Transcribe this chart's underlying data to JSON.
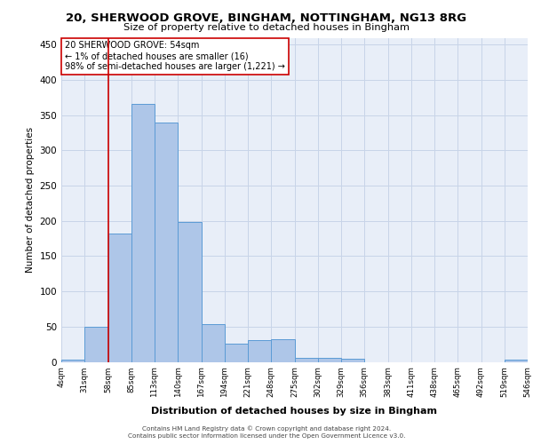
{
  "title_line1": "20, SHERWOOD GROVE, BINGHAM, NOTTINGHAM, NG13 8RG",
  "title_line2": "Size of property relative to detached houses in Bingham",
  "xlabel": "Distribution of detached houses by size in Bingham",
  "ylabel": "Number of detached properties",
  "bar_values": [
    3,
    50,
    182,
    366,
    340,
    199,
    54,
    26,
    31,
    32,
    6,
    6,
    4,
    0,
    0,
    0,
    0,
    0,
    0,
    3
  ],
  "tick_labels": [
    "4sqm",
    "31sqm",
    "58sqm",
    "85sqm",
    "113sqm",
    "140sqm",
    "167sqm",
    "194sqm",
    "221sqm",
    "248sqm",
    "275sqm",
    "302sqm",
    "329sqm",
    "356sqm",
    "383sqm",
    "411sqm",
    "438sqm",
    "465sqm",
    "492sqm",
    "519sqm",
    "546sqm"
  ],
  "bar_color": "#aec6e8",
  "bar_edge_color": "#5b9bd5",
  "grid_color": "#c8d4e8",
  "background_color": "#e8eef8",
  "annotation_text": "20 SHERWOOD GROVE: 54sqm\n← 1% of detached houses are smaller (16)\n98% of semi-detached houses are larger (1,221) →",
  "annotation_box_color": "#ffffff",
  "annotation_border_color": "#cc0000",
  "red_line_bar_index": 1.5,
  "ylim": [
    0,
    460
  ],
  "yticks": [
    0,
    50,
    100,
    150,
    200,
    250,
    300,
    350,
    400,
    450
  ],
  "footer_line1": "Contains HM Land Registry data © Crown copyright and database right 2024.",
  "footer_line2": "Contains public sector information licensed under the Open Government Licence v3.0."
}
